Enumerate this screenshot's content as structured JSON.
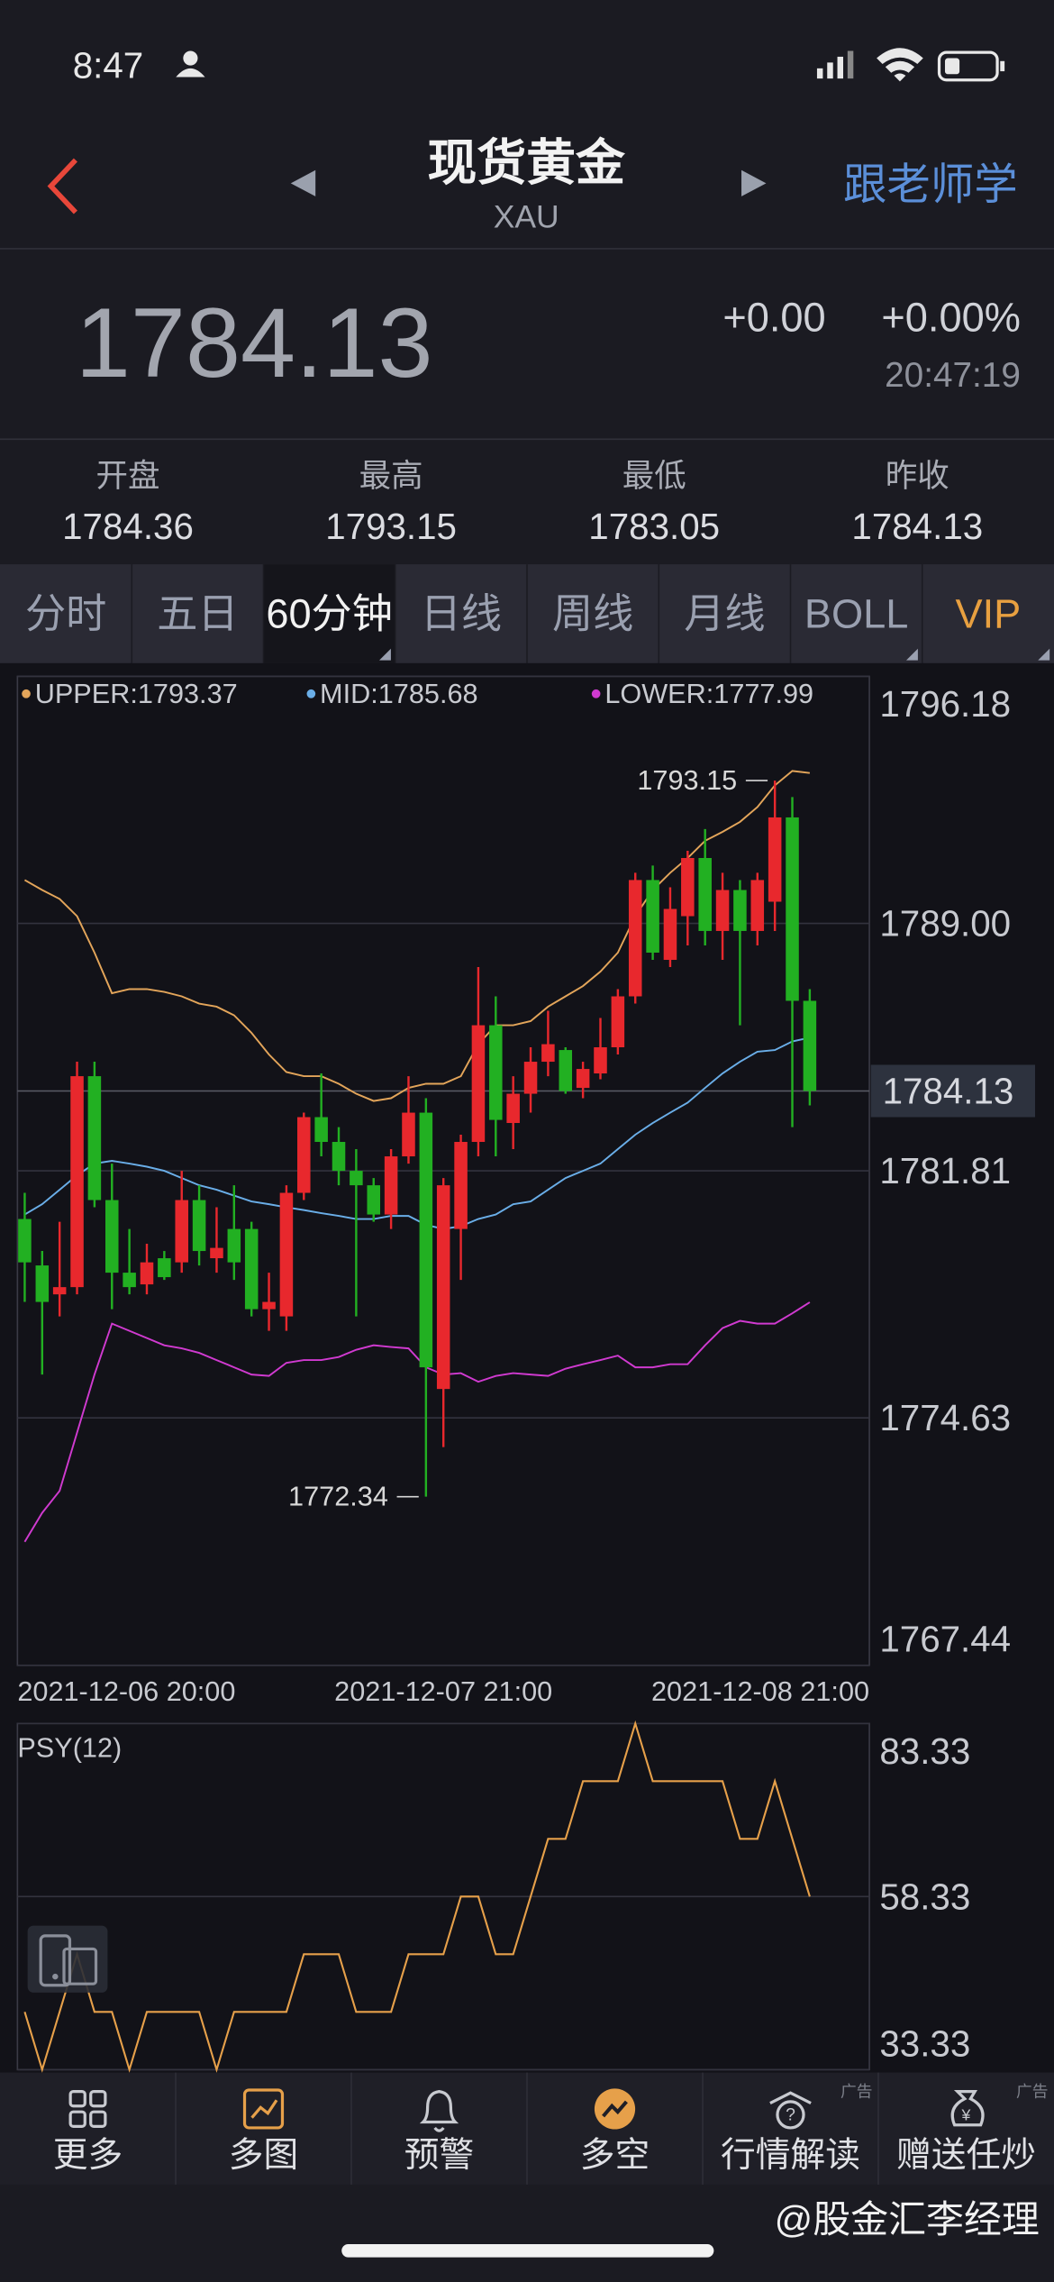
{
  "status_bar": {
    "time": "8:47"
  },
  "header": {
    "title": "现货黄金",
    "symbol": "XAU",
    "link": "跟老师学"
  },
  "quote": {
    "price": "1784.13",
    "change": "+0.00",
    "change_pct": "+0.00%",
    "time": "20:47:19"
  },
  "stats": [
    {
      "label": "开盘",
      "value": "1784.36"
    },
    {
      "label": "最高",
      "value": "1793.15"
    },
    {
      "label": "最低",
      "value": "1783.05"
    },
    {
      "label": "昨收",
      "value": "1784.13"
    }
  ],
  "tabs": [
    "分时",
    "五日",
    "60分钟",
    "日线",
    "周线",
    "月线",
    "BOLL",
    "VIP"
  ],
  "chart_data": [
    {
      "type": "candlestick",
      "x_labels": [
        "2021-12-06 20:00",
        "2021-12-07 21:00",
        "2021-12-08 21:00"
      ],
      "open": [
        1780.41,
        1779.06,
        1778.22,
        1778.43,
        1784.56,
        1780.96,
        1778.85,
        1778.51,
        1779.27,
        1779.15,
        1780.96,
        1779.27,
        1780.12,
        1780.12,
        1777.79,
        1777.58,
        1781.17,
        1783.37,
        1782.65,
        1781.81,
        1781.39,
        1780.54,
        1782.23,
        1783.5,
        1775.47,
        1780.12,
        1782.65,
        1786.04,
        1783.2,
        1784.05,
        1784.98,
        1785.32,
        1784.22,
        1784.64,
        1785.4,
        1786.88,
        1790.26,
        1787.94,
        1789.21,
        1790.9,
        1788.78,
        1789.97,
        1788.78,
        1789.63,
        1792.08,
        1786.75
      ],
      "high": [
        1781.17,
        1779.48,
        1780.33,
        1784.98,
        1784.98,
        1782.02,
        1780.12,
        1779.69,
        1779.48,
        1781.81,
        1781.39,
        1780.75,
        1781.39,
        1780.33,
        1778.85,
        1781.39,
        1783.5,
        1784.64,
        1783.08,
        1782.44,
        1781.6,
        1782.44,
        1784.56,
        1783.92,
        1781.6,
        1782.86,
        1787.73,
        1786.88,
        1784.56,
        1785.4,
        1786.46,
        1785.4,
        1784.98,
        1786.25,
        1787.09,
        1790.47,
        1790.68,
        1790.05,
        1791.11,
        1791.74,
        1790.47,
        1790.26,
        1790.47,
        1793.15,
        1792.67,
        1787.09
      ],
      "low": [
        1778.0,
        1775.89,
        1777.58,
        1778.22,
        1780.75,
        1777.79,
        1778.22,
        1778.22,
        1778.64,
        1778.85,
        1779.06,
        1778.85,
        1778.64,
        1777.58,
        1777.16,
        1777.16,
        1780.96,
        1782.23,
        1781.39,
        1777.58,
        1780.33,
        1780.12,
        1782.02,
        1772.34,
        1773.78,
        1778.64,
        1782.23,
        1782.23,
        1782.44,
        1783.5,
        1784.56,
        1784.05,
        1783.92,
        1784.47,
        1785.19,
        1786.67,
        1787.94,
        1787.73,
        1788.36,
        1788.36,
        1787.94,
        1786.04,
        1788.36,
        1788.78,
        1783.08,
        1783.71
      ],
      "close": [
        1779.15,
        1778.0,
        1778.43,
        1784.56,
        1780.96,
        1778.85,
        1778.43,
        1779.15,
        1778.72,
        1780.96,
        1779.48,
        1779.57,
        1779.15,
        1777.79,
        1778.0,
        1781.17,
        1783.37,
        1782.65,
        1781.81,
        1781.39,
        1780.54,
        1782.23,
        1783.5,
        1776.1,
        1781.39,
        1782.65,
        1786.04,
        1783.29,
        1784.05,
        1784.98,
        1785.49,
        1784.13,
        1784.77,
        1785.4,
        1786.88,
        1790.26,
        1788.15,
        1789.42,
        1790.9,
        1788.78,
        1789.97,
        1788.78,
        1790.26,
        1792.08,
        1786.75,
        1784.13
      ],
      "up_color": "#e8282d",
      "down_color": "#22b022",
      "series": [
        {
          "name": "UPPER:1793.37",
          "color": "#e3a55a",
          "values": [
            1790.26,
            1789.97,
            1789.71,
            1789.21,
            1788.15,
            1786.97,
            1787.09,
            1787.09,
            1787.01,
            1786.88,
            1786.67,
            1786.58,
            1786.33,
            1785.82,
            1785.19,
            1784.68,
            1784.56,
            1784.56,
            1784.34,
            1784.05,
            1783.84,
            1783.92,
            1784.22,
            1784.34,
            1784.34,
            1784.56,
            1785.49,
            1786.04,
            1786.04,
            1786.16,
            1786.58,
            1786.88,
            1787.18,
            1787.6,
            1788.15,
            1789.21,
            1789.97,
            1790.47,
            1790.9,
            1791.4,
            1791.66,
            1791.95,
            1792.38,
            1793.01,
            1793.43,
            1793.37
          ]
        },
        {
          "name": "MID:1785.68",
          "color": "#6aaee8",
          "values": [
            1780.54,
            1780.84,
            1781.26,
            1781.68,
            1782.02,
            1782.1,
            1782.02,
            1781.93,
            1781.81,
            1781.6,
            1781.39,
            1781.26,
            1781.09,
            1780.92,
            1780.84,
            1780.75,
            1780.67,
            1780.58,
            1780.5,
            1780.41,
            1780.41,
            1780.5,
            1780.5,
            1780.24,
            1780.12,
            1780.2,
            1780.41,
            1780.54,
            1780.84,
            1780.92,
            1781.26,
            1781.6,
            1781.81,
            1782.02,
            1782.44,
            1782.86,
            1783.2,
            1783.5,
            1783.79,
            1784.22,
            1784.64,
            1784.98,
            1785.27,
            1785.32,
            1785.57,
            1785.68
          ]
        },
        {
          "name": "LOWER:1777.99",
          "color": "#d03ad0",
          "values": [
            1771.03,
            1771.87,
            1772.51,
            1774.2,
            1775.89,
            1777.37,
            1777.16,
            1776.95,
            1776.74,
            1776.65,
            1776.52,
            1776.31,
            1776.1,
            1775.89,
            1775.85,
            1776.23,
            1776.31,
            1776.31,
            1776.4,
            1776.61,
            1776.74,
            1776.69,
            1776.65,
            1776.1,
            1775.89,
            1775.93,
            1775.68,
            1775.85,
            1775.93,
            1775.89,
            1775.85,
            1776.06,
            1776.19,
            1776.31,
            1776.44,
            1776.1,
            1776.1,
            1776.19,
            1776.19,
            1776.74,
            1777.24,
            1777.45,
            1777.37,
            1777.37,
            1777.67,
            1777.99
          ]
        }
      ],
      "annotations": [
        "1793.15",
        "1772.34"
      ],
      "ylim": [
        1767.44,
        1796.18
      ],
      "yticks": [
        1796.18,
        {
          "value": 1789,
          "label": "1789.00"
        },
        1781.81,
        1774.63,
        1767.44
      ],
      "last_price": 1784.13,
      "grid": true
    },
    {
      "type": "line",
      "title": "PSY(12)",
      "series": [
        {
          "color": "#e6a04a",
          "values": [
            41.67,
            33.33,
            41.67,
            50,
            41.67,
            41.67,
            33.33,
            41.67,
            41.67,
            41.67,
            41.67,
            33.33,
            41.67,
            41.67,
            41.67,
            41.67,
            50,
            50,
            50,
            41.67,
            41.67,
            41.67,
            50,
            50,
            50,
            58.33,
            58.33,
            50,
            50,
            58.33,
            66.67,
            66.67,
            75,
            75,
            75,
            83.33,
            75,
            75,
            75,
            75,
            75,
            66.67,
            66.67,
            75,
            66.67,
            58.33
          ]
        }
      ],
      "ylim": [
        33.33,
        83.33
      ],
      "yticks": [
        83.33,
        58.33,
        33.33
      ],
      "grid": true
    }
  ],
  "toolbar": [
    {
      "label": "更多"
    },
    {
      "label": "多图"
    },
    {
      "label": "预警"
    },
    {
      "label": "多空"
    },
    {
      "label": "行情解读",
      "tag": "广告"
    },
    {
      "label": "赠送任炒",
      "tag": "广告"
    }
  ],
  "watermark": "@股金汇李经理"
}
